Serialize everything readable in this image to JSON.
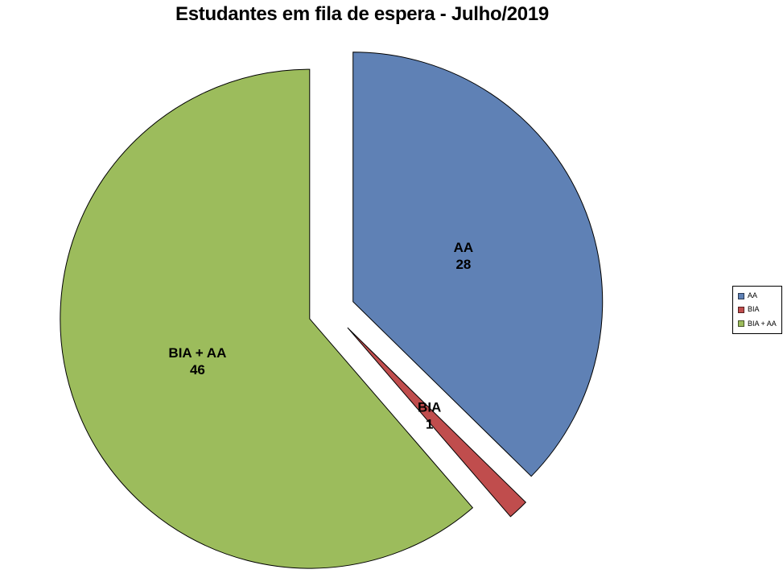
{
  "chart_data": {
    "type": "pie",
    "title": "Estudantes em fila de espera - Julho/2019",
    "categories": [
      "AA",
      "BIA",
      "BIA + AA"
    ],
    "values": [
      28,
      1,
      46
    ],
    "colors": [
      "#5F81B5",
      "#C04D4D",
      "#9CBC5C"
    ],
    "data_labels": "category name and value, two lines, bold, inside slice",
    "start_angle_deg": 0,
    "direction": "clockwise",
    "exploded": true,
    "legend_position": "right",
    "legend_items": [
      "AA",
      "BIA",
      "BIA + AA"
    ]
  },
  "style": {
    "background": "#FFFFFF",
    "slice_border": "#000000",
    "label_color": "#000000",
    "title_color": "#000000",
    "legend_border": "#000000"
  }
}
